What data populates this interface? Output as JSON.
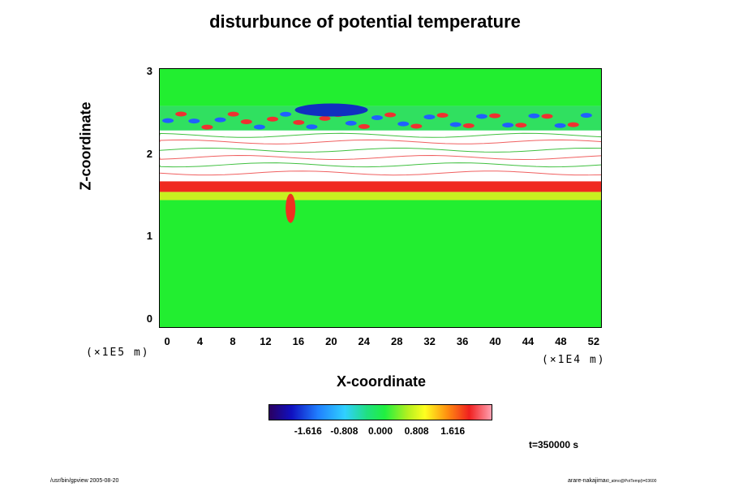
{
  "chart_data": {
    "type": "heatmap",
    "title": "disturbunce of potential temperature",
    "xlabel": "X-coordinate",
    "ylabel": "Z-coordinate",
    "x_unit": "(×1E4 m)",
    "y_unit": "(×1E5 m)",
    "xlim": [
      -1,
      53
    ],
    "ylim": [
      -0.1,
      3.05
    ],
    "x_ticks": [
      "0",
      "4",
      "8",
      "12",
      "16",
      "20",
      "24",
      "28",
      "32",
      "36",
      "40",
      "44",
      "48",
      "52"
    ],
    "y_ticks": [
      "0",
      "1",
      "2",
      "3"
    ],
    "colorbar": {
      "ticks": [
        "-1.616",
        "-0.808",
        "0.000",
        "0.808",
        "1.616"
      ],
      "range": [
        -2.5,
        2.5
      ],
      "colormap": [
        "#2a0060",
        "#1010c0",
        "#2080ff",
        "#30d0ff",
        "#20e080",
        "#20f040",
        "#b0f020",
        "#ffff20",
        "#ff9010",
        "#f02020",
        "#ffa0b0"
      ]
    },
    "features": [
      {
        "region": "z 0 to 1.4",
        "value": "near 0 (green)"
      },
      {
        "region": "z 1.55 to 1.65",
        "value": "strong positive band (red)"
      },
      {
        "region": "z 1.7 to 2.3",
        "value": "undefined / white with thin contour lines"
      },
      {
        "region": "z 2.3 to 2.6",
        "value": "wave disturbances, positive and negative (red / blue)"
      },
      {
        "region": "z 2.6 to 3.05",
        "value": "near 0 (green)"
      }
    ],
    "time_label": "t=350000 s"
  },
  "footer": {
    "left": "/usr/bin/gpview 2005-08-20",
    "right": "arare-nakajima",
    "right_sub": "t0_atmo@PotTemp(t=03600"
  }
}
